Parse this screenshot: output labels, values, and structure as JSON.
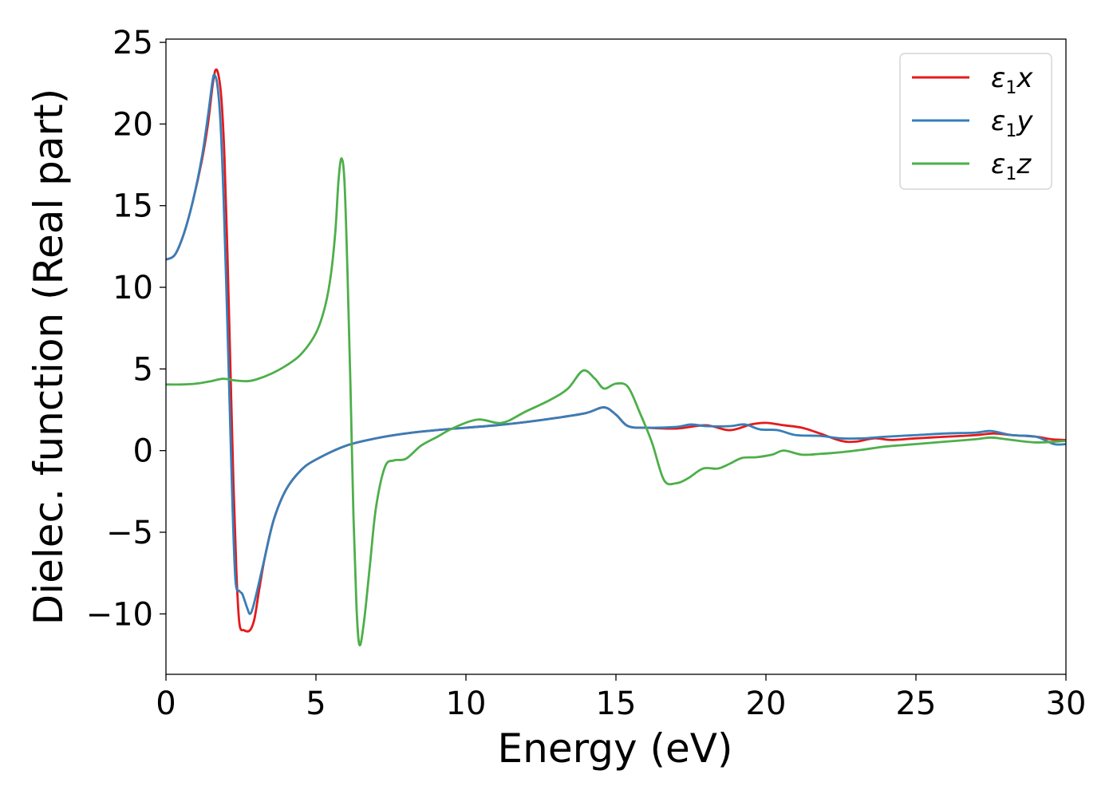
{
  "chart_data": {
    "type": "line",
    "title": "",
    "xlabel": "Energy (eV)",
    "ylabel": "Dielec. function (Real part)",
    "xlim": [
      0,
      30
    ],
    "ylim": [
      -13.7,
      25.2
    ],
    "xticks": [
      0,
      5,
      10,
      15,
      20,
      25,
      30
    ],
    "xtick_labels": [
      "0",
      "5",
      "10",
      "15",
      "20",
      "25",
      "30"
    ],
    "yticks": [
      -10,
      -5,
      0,
      5,
      10,
      15,
      20,
      25
    ],
    "ytick_labels": [
      "−10",
      "−5",
      "0",
      "5",
      "10",
      "15",
      "20",
      "25"
    ],
    "grid": false,
    "legend_position": "top-right",
    "series": [
      {
        "name_base": "ε",
        "name_sub": "1",
        "name_suffix": "x",
        "color": "#e41a1c",
        "points": [
          [
            0,
            11.7
          ],
          [
            0.3,
            12.0
          ],
          [
            0.6,
            13.3
          ],
          [
            0.9,
            15.3
          ],
          [
            1.2,
            17.8
          ],
          [
            1.4,
            20.0
          ],
          [
            1.55,
            22.3
          ],
          [
            1.65,
            23.3
          ],
          [
            1.75,
            23.0
          ],
          [
            1.85,
            21.5
          ],
          [
            1.95,
            18.0
          ],
          [
            2.05,
            12.0
          ],
          [
            2.15,
            5.0
          ],
          [
            2.25,
            -2.0
          ],
          [
            2.35,
            -7.5
          ],
          [
            2.45,
            -10.6
          ],
          [
            2.6,
            -11.0
          ],
          [
            2.8,
            -11.0
          ],
          [
            2.95,
            -10.3
          ],
          [
            3.1,
            -8.6
          ],
          [
            3.3,
            -6.5
          ],
          [
            3.6,
            -4.2
          ],
          [
            4.0,
            -2.4
          ],
          [
            4.5,
            -1.2
          ],
          [
            5.0,
            -0.55
          ],
          [
            6.0,
            0.3
          ],
          [
            7.0,
            0.75
          ],
          [
            8.0,
            1.05
          ],
          [
            9.0,
            1.25
          ],
          [
            10.0,
            1.4
          ],
          [
            11.0,
            1.55
          ],
          [
            12.0,
            1.75
          ],
          [
            13.0,
            2.0
          ],
          [
            14.0,
            2.3
          ],
          [
            14.6,
            2.65
          ],
          [
            15.0,
            2.2
          ],
          [
            15.4,
            1.5
          ],
          [
            16.0,
            1.4
          ],
          [
            17.0,
            1.35
          ],
          [
            18.0,
            1.55
          ],
          [
            18.8,
            1.25
          ],
          [
            19.5,
            1.6
          ],
          [
            20.0,
            1.7
          ],
          [
            20.6,
            1.55
          ],
          [
            21.2,
            1.4
          ],
          [
            21.8,
            1.05
          ],
          [
            22.5,
            0.6
          ],
          [
            23.0,
            0.55
          ],
          [
            23.6,
            0.75
          ],
          [
            24.2,
            0.65
          ],
          [
            25.0,
            0.75
          ],
          [
            26.0,
            0.85
          ],
          [
            27.0,
            0.95
          ],
          [
            27.6,
            1.05
          ],
          [
            28.2,
            0.95
          ],
          [
            29.0,
            0.85
          ],
          [
            29.5,
            0.7
          ],
          [
            30.0,
            0.65
          ]
        ]
      },
      {
        "name_base": "ε",
        "name_sub": "1",
        "name_suffix": "y",
        "color": "#377eb8",
        "points": [
          [
            0,
            11.7
          ],
          [
            0.3,
            12.0
          ],
          [
            0.6,
            13.3
          ],
          [
            0.9,
            15.3
          ],
          [
            1.2,
            18.0
          ],
          [
            1.4,
            20.5
          ],
          [
            1.55,
            22.6
          ],
          [
            1.62,
            23.0
          ],
          [
            1.72,
            22.3
          ],
          [
            1.82,
            20.0
          ],
          [
            1.92,
            15.5
          ],
          [
            2.02,
            9.5
          ],
          [
            2.12,
            3.0
          ],
          [
            2.22,
            -3.5
          ],
          [
            2.32,
            -8.0
          ],
          [
            2.45,
            -8.6
          ],
          [
            2.55,
            -8.8
          ],
          [
            2.7,
            -9.6
          ],
          [
            2.8,
            -10.0
          ],
          [
            2.9,
            -9.6
          ],
          [
            3.05,
            -8.5
          ],
          [
            3.3,
            -6.5
          ],
          [
            3.6,
            -4.2
          ],
          [
            4.0,
            -2.4
          ],
          [
            4.5,
            -1.2
          ],
          [
            5.0,
            -0.55
          ],
          [
            6.0,
            0.3
          ],
          [
            7.0,
            0.75
          ],
          [
            8.0,
            1.05
          ],
          [
            9.0,
            1.25
          ],
          [
            10.0,
            1.4
          ],
          [
            11.0,
            1.55
          ],
          [
            12.0,
            1.75
          ],
          [
            13.0,
            2.0
          ],
          [
            14.0,
            2.3
          ],
          [
            14.6,
            2.65
          ],
          [
            15.0,
            2.2
          ],
          [
            15.4,
            1.5
          ],
          [
            16.0,
            1.4
          ],
          [
            17.0,
            1.45
          ],
          [
            17.5,
            1.6
          ],
          [
            18.0,
            1.5
          ],
          [
            18.8,
            1.5
          ],
          [
            19.3,
            1.6
          ],
          [
            19.8,
            1.3
          ],
          [
            20.4,
            1.25
          ],
          [
            21.0,
            0.95
          ],
          [
            21.8,
            0.9
          ],
          [
            22.5,
            0.75
          ],
          [
            23.2,
            0.75
          ],
          [
            24.0,
            0.85
          ],
          [
            25.0,
            0.95
          ],
          [
            26.0,
            1.05
          ],
          [
            27.0,
            1.1
          ],
          [
            27.5,
            1.2
          ],
          [
            28.2,
            0.95
          ],
          [
            29.0,
            0.85
          ],
          [
            29.6,
            0.4
          ],
          [
            30.0,
            0.4
          ]
        ]
      },
      {
        "name_base": "ε",
        "name_sub": "1",
        "name_suffix": "z",
        "color": "#4daf4a",
        "points": [
          [
            0,
            4.05
          ],
          [
            0.5,
            4.05
          ],
          [
            1.0,
            4.1
          ],
          [
            1.5,
            4.25
          ],
          [
            1.9,
            4.4
          ],
          [
            2.3,
            4.3
          ],
          [
            2.7,
            4.25
          ],
          [
            3.0,
            4.35
          ],
          [
            3.5,
            4.7
          ],
          [
            4.0,
            5.2
          ],
          [
            4.5,
            5.9
          ],
          [
            5.0,
            7.2
          ],
          [
            5.3,
            8.8
          ],
          [
            5.5,
            10.8
          ],
          [
            5.65,
            13.5
          ],
          [
            5.75,
            16.5
          ],
          [
            5.85,
            17.9
          ],
          [
            5.95,
            16.5
          ],
          [
            6.05,
            11.0
          ],
          [
            6.15,
            4.0
          ],
          [
            6.25,
            -4.0
          ],
          [
            6.35,
            -9.5
          ],
          [
            6.45,
            -11.9
          ],
          [
            6.6,
            -10.5
          ],
          [
            6.8,
            -7.0
          ],
          [
            7.0,
            -3.5
          ],
          [
            7.3,
            -1.0
          ],
          [
            7.6,
            -0.6
          ],
          [
            8.0,
            -0.5
          ],
          [
            8.5,
            0.3
          ],
          [
            9.0,
            0.8
          ],
          [
            9.6,
            1.4
          ],
          [
            10.4,
            1.9
          ],
          [
            11.2,
            1.7
          ],
          [
            12.0,
            2.4
          ],
          [
            12.8,
            3.1
          ],
          [
            13.4,
            3.8
          ],
          [
            13.9,
            4.9
          ],
          [
            14.3,
            4.4
          ],
          [
            14.6,
            3.8
          ],
          [
            15.0,
            4.1
          ],
          [
            15.4,
            3.9
          ],
          [
            15.8,
            2.3
          ],
          [
            16.2,
            0.5
          ],
          [
            16.6,
            -1.8
          ],
          [
            17.0,
            -2.0
          ],
          [
            17.4,
            -1.7
          ],
          [
            17.9,
            -1.1
          ],
          [
            18.4,
            -1.1
          ],
          [
            18.8,
            -0.8
          ],
          [
            19.2,
            -0.45
          ],
          [
            19.7,
            -0.4
          ],
          [
            20.2,
            -0.25
          ],
          [
            20.6,
            0.0
          ],
          [
            21.2,
            -0.25
          ],
          [
            21.8,
            -0.2
          ],
          [
            22.5,
            -0.1
          ],
          [
            23.2,
            0.05
          ],
          [
            24.0,
            0.25
          ],
          [
            25.0,
            0.4
          ],
          [
            26.0,
            0.55
          ],
          [
            27.0,
            0.7
          ],
          [
            27.5,
            0.8
          ],
          [
            28.0,
            0.7
          ],
          [
            29.0,
            0.5
          ],
          [
            30.0,
            0.6
          ]
        ]
      }
    ]
  }
}
